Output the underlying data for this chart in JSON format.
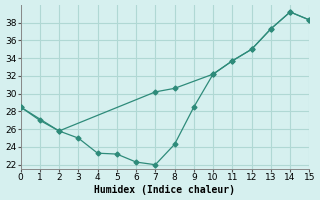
{
  "line1_x": [
    0,
    1,
    2,
    7,
    8,
    10,
    11,
    12,
    13,
    14,
    15
  ],
  "line1_y": [
    28.5,
    27.0,
    25.8,
    30.2,
    30.6,
    32.2,
    33.7,
    35.0,
    37.3,
    39.2,
    38.3
  ],
  "line2_x": [
    0,
    2,
    3,
    4,
    5,
    6,
    7,
    8,
    9,
    10,
    11,
    12,
    13,
    14,
    15
  ],
  "line2_y": [
    28.5,
    25.8,
    25.0,
    23.3,
    23.2,
    22.3,
    22.0,
    24.3,
    28.5,
    32.2,
    33.7,
    35.0,
    37.3,
    39.2,
    38.3
  ],
  "line_color": "#2e8b7a",
  "marker": "D",
  "marker_size": 2.5,
  "bg_color": "#d6f0ef",
  "grid_color": "#b0d8d4",
  "xlabel": "Humidex (Indice chaleur)",
  "xlim": [
    0,
    15
  ],
  "ylim": [
    21.5,
    40
  ],
  "yticks": [
    22,
    24,
    26,
    28,
    30,
    32,
    34,
    36,
    38
  ],
  "xticks": [
    0,
    1,
    2,
    3,
    4,
    5,
    6,
    7,
    8,
    9,
    10,
    11,
    12,
    13,
    14,
    15
  ],
  "label_fontsize": 7,
  "tick_fontsize": 6.5
}
